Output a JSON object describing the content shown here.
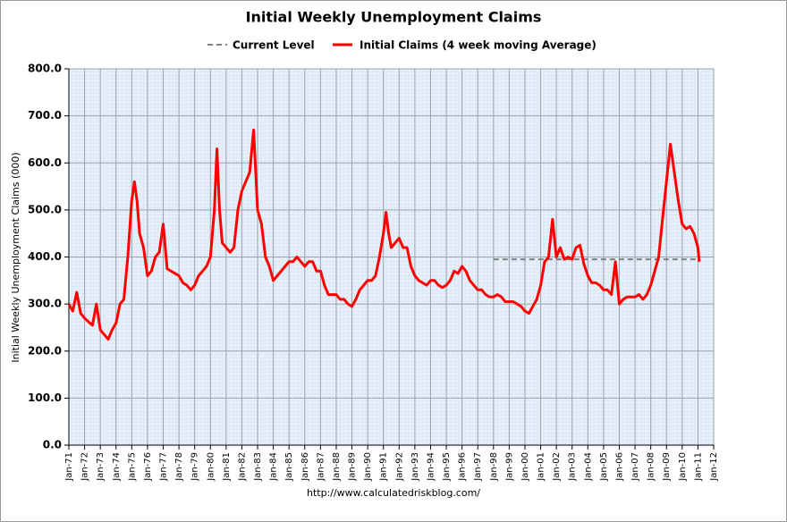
{
  "chart_data": {
    "type": "line",
    "title": "Initial Weekly Unemployment Claims",
    "y_label": "Initial Weekly Unemployment Claims (000)",
    "source": "http://www.calculatedriskblog.com/",
    "ylim": [
      0,
      800
    ],
    "yticks": [
      {
        "value": 0,
        "label": "0.0"
      },
      {
        "value": 100,
        "label": "100.0"
      },
      {
        "value": 200,
        "label": "200.0"
      },
      {
        "value": 300,
        "label": "300.0"
      },
      {
        "value": 400,
        "label": "400.0"
      },
      {
        "value": 500,
        "label": "500.0"
      },
      {
        "value": 600,
        "label": "600.0"
      },
      {
        "value": 700,
        "label": "700.0"
      },
      {
        "value": 800,
        "label": "800.0"
      }
    ],
    "xlim": [
      "1971-01",
      "2012-01"
    ],
    "xticks": [
      {
        "value": "1971-01",
        "label": "Jan-71"
      },
      {
        "value": "1972-01",
        "label": "Jan-72"
      },
      {
        "value": "1973-01",
        "label": "Jan-73"
      },
      {
        "value": "1974-01",
        "label": "Jan-74"
      },
      {
        "value": "1975-01",
        "label": "Jan-75"
      },
      {
        "value": "1976-01",
        "label": "Jan-76"
      },
      {
        "value": "1977-01",
        "label": "Jan-77"
      },
      {
        "value": "1978-01",
        "label": "Jan-78"
      },
      {
        "value": "1979-01",
        "label": "Jan-79"
      },
      {
        "value": "1980-01",
        "label": "Jan-80"
      },
      {
        "value": "1981-01",
        "label": "Jan-81"
      },
      {
        "value": "1982-01",
        "label": "Jan-82"
      },
      {
        "value": "1983-01",
        "label": "Jan-83"
      },
      {
        "value": "1984-01",
        "label": "Jan-84"
      },
      {
        "value": "1985-01",
        "label": "Jan-85"
      },
      {
        "value": "1986-01",
        "label": "Jan-86"
      },
      {
        "value": "1987-01",
        "label": "Jan-87"
      },
      {
        "value": "1988-01",
        "label": "Jan-88"
      },
      {
        "value": "1989-01",
        "label": "Jan-89"
      },
      {
        "value": "1990-01",
        "label": "Jan-90"
      },
      {
        "value": "1991-01",
        "label": "Jan-91"
      },
      {
        "value": "1992-01",
        "label": "Jan-92"
      },
      {
        "value": "1993-01",
        "label": "Jan-93"
      },
      {
        "value": "1994-01",
        "label": "Jan-94"
      },
      {
        "value": "1995-01",
        "label": "Jan-95"
      },
      {
        "value": "1996-01",
        "label": "Jan-96"
      },
      {
        "value": "1997-01",
        "label": "Jan-97"
      },
      {
        "value": "1998-01",
        "label": "Jan-98"
      },
      {
        "value": "1999-01",
        "label": "Jan-99"
      },
      {
        "value": "2000-01",
        "label": "Jan-00"
      },
      {
        "value": "2001-01",
        "label": "Jan-01"
      },
      {
        "value": "2002-01",
        "label": "Jan-02"
      },
      {
        "value": "2003-01",
        "label": "Jan-03"
      },
      {
        "value": "2004-01",
        "label": "Jan-04"
      },
      {
        "value": "2005-01",
        "label": "Jan-05"
      },
      {
        "value": "2006-01",
        "label": "Jan-06"
      },
      {
        "value": "2007-01",
        "label": "Jan-07"
      },
      {
        "value": "2008-01",
        "label": "Jan-08"
      },
      {
        "value": "2009-01",
        "label": "Jan-09"
      },
      {
        "value": "2010-01",
        "label": "Jan-10"
      },
      {
        "value": "2011-01",
        "label": "Jan-11"
      },
      {
        "value": "2012-01",
        "label": "Jan-12"
      }
    ],
    "grid": true,
    "series": [
      {
        "name": "Current Level",
        "color": "#808080",
        "dash": true,
        "x": [
          "1998-01",
          "2011-02"
        ],
        "values": [
          395,
          395
        ]
      },
      {
        "name": "Initial Claims (4 week moving Average)",
        "color": "#ff0000",
        "dash": false,
        "x": [
          "1971-01",
          "1971-04",
          "1971-07",
          "1971-10",
          "1972-01",
          "1972-04",
          "1972-07",
          "1972-10",
          "1973-01",
          "1973-04",
          "1973-07",
          "1973-10",
          "1974-01",
          "1974-04",
          "1974-07",
          "1974-10",
          "1975-01",
          "1975-03",
          "1975-05",
          "1975-07",
          "1975-10",
          "1976-01",
          "1976-04",
          "1976-07",
          "1976-10",
          "1977-01",
          "1977-04",
          "1977-07",
          "1977-10",
          "1978-01",
          "1978-04",
          "1978-07",
          "1978-10",
          "1979-01",
          "1979-04",
          "1979-07",
          "1979-10",
          "1980-01",
          "1980-04",
          "1980-06",
          "1980-08",
          "1980-10",
          "1981-01",
          "1981-04",
          "1981-07",
          "1981-10",
          "1982-01",
          "1982-04",
          "1982-07",
          "1982-10",
          "1983-01",
          "1983-04",
          "1983-07",
          "1983-10",
          "1984-01",
          "1984-04",
          "1984-07",
          "1984-10",
          "1985-01",
          "1985-04",
          "1985-07",
          "1985-10",
          "1986-01",
          "1986-04",
          "1986-07",
          "1986-10",
          "1987-01",
          "1987-04",
          "1987-07",
          "1987-10",
          "1988-01",
          "1988-04",
          "1988-07",
          "1988-10",
          "1989-01",
          "1989-04",
          "1989-07",
          "1989-10",
          "1990-01",
          "1990-04",
          "1990-07",
          "1990-10",
          "1991-01",
          "1991-03",
          "1991-05",
          "1991-07",
          "1991-10",
          "1992-01",
          "1992-04",
          "1992-07",
          "1992-10",
          "1993-01",
          "1993-04",
          "1993-07",
          "1993-10",
          "1994-01",
          "1994-04",
          "1994-07",
          "1994-10",
          "1995-01",
          "1995-04",
          "1995-07",
          "1995-10",
          "1996-01",
          "1996-04",
          "1996-07",
          "1996-10",
          "1997-01",
          "1997-04",
          "1997-07",
          "1997-10",
          "1998-01",
          "1998-04",
          "1998-07",
          "1998-10",
          "1999-01",
          "1999-04",
          "1999-07",
          "1999-10",
          "2000-01",
          "2000-04",
          "2000-07",
          "2000-10",
          "2001-01",
          "2001-04",
          "2001-07",
          "2001-10",
          "2002-01",
          "2002-04",
          "2002-07",
          "2002-10",
          "2003-01",
          "2003-04",
          "2003-07",
          "2003-10",
          "2004-01",
          "2004-04",
          "2004-07",
          "2004-10",
          "2005-01",
          "2005-04",
          "2005-07",
          "2005-10",
          "2006-01",
          "2006-04",
          "2006-07",
          "2006-10",
          "2007-01",
          "2007-04",
          "2007-07",
          "2007-10",
          "2008-01",
          "2008-04",
          "2008-07",
          "2008-10",
          "2009-01",
          "2009-04",
          "2009-07",
          "2009-10",
          "2010-01",
          "2010-04",
          "2010-07",
          "2010-10",
          "2011-01",
          "2011-02"
        ],
        "values": [
          300,
          285,
          325,
          280,
          270,
          262,
          255,
          300,
          245,
          235,
          225,
          245,
          260,
          300,
          310,
          400,
          520,
          560,
          520,
          450,
          420,
          360,
          370,
          400,
          410,
          470,
          375,
          370,
          365,
          360,
          345,
          340,
          330,
          340,
          360,
          370,
          380,
          400,
          500,
          630,
          500,
          430,
          420,
          410,
          420,
          500,
          540,
          560,
          580,
          670,
          500,
          470,
          400,
          380,
          350,
          360,
          370,
          380,
          390,
          390,
          400,
          390,
          380,
          390,
          390,
          370,
          370,
          340,
          320,
          320,
          320,
          310,
          310,
          300,
          295,
          310,
          330,
          340,
          350,
          350,
          360,
          400,
          450,
          495,
          450,
          420,
          430,
          440,
          420,
          420,
          380,
          360,
          350,
          345,
          340,
          350,
          350,
          340,
          335,
          340,
          350,
          370,
          365,
          380,
          370,
          350,
          340,
          330,
          330,
          320,
          315,
          315,
          320,
          315,
          305,
          305,
          305,
          300,
          295,
          285,
          280,
          295,
          310,
          340,
          390,
          400,
          480,
          400,
          420,
          395,
          400,
          395,
          420,
          425,
          385,
          360,
          345,
          345,
          340,
          330,
          330,
          320,
          390,
          300,
          310,
          315,
          315,
          315,
          320,
          310,
          320,
          340,
          370,
          400,
          480,
          560,
          640,
          580,
          520,
          470,
          460,
          465,
          450,
          420,
          390
        ]
      }
    ]
  }
}
